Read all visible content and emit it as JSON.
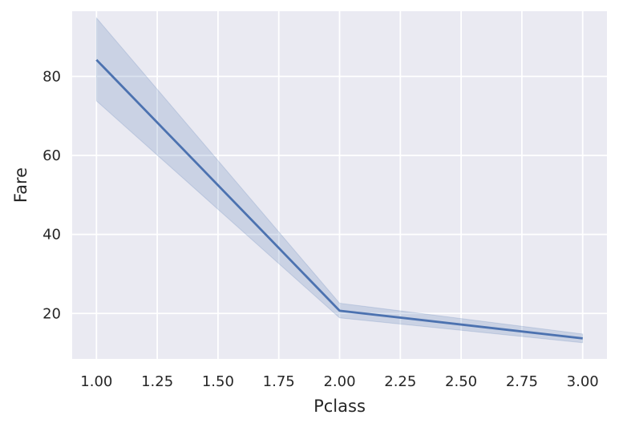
{
  "chart_data": {
    "type": "line",
    "title": "",
    "xlabel": "Pclass",
    "ylabel": "Fare",
    "xlim": [
      0.9,
      3.1
    ],
    "ylim": [
      8.5,
      96.5
    ],
    "xticks": [
      1.0,
      1.25,
      1.5,
      1.75,
      2.0,
      2.25,
      2.5,
      2.75,
      3.0
    ],
    "xtick_labels": [
      "1.00",
      "1.25",
      "1.50",
      "1.75",
      "2.00",
      "2.25",
      "2.50",
      "2.75",
      "3.00"
    ],
    "yticks": [
      20,
      40,
      60,
      80
    ],
    "ytick_labels": [
      "20",
      "40",
      "60",
      "80"
    ],
    "grid": true,
    "series": [
      {
        "x": [
          1,
          2,
          3
        ],
        "y": [
          84.2,
          20.7,
          13.7
        ],
        "ci_lower": [
          73.8,
          18.9,
          12.6
        ],
        "ci_upper": [
          94.8,
          22.6,
          14.8
        ]
      }
    ],
    "colors": {
      "line": "#4c72b0",
      "band": "#4c72b0",
      "background": "#eaeaf2",
      "grid": "#ffffff",
      "text": "#262626"
    }
  }
}
